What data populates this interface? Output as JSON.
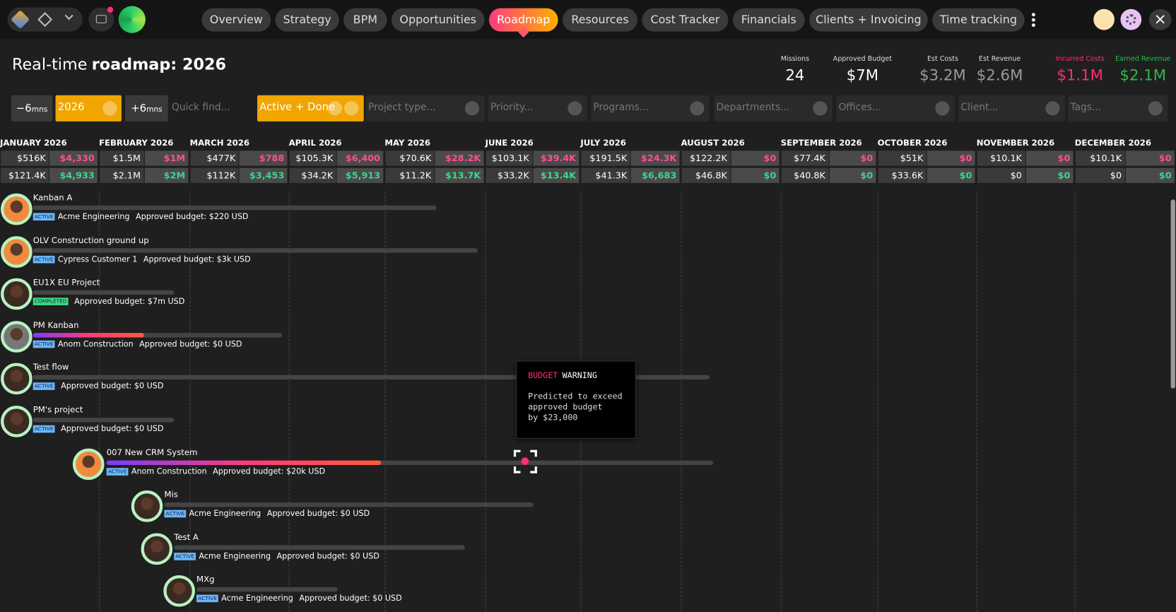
{
  "nav": {
    "items": [
      "Overview",
      "Strategy",
      "BPM",
      "Opportunities",
      "Roadmap",
      "Resources",
      "Cost Tracker",
      "Financials",
      "Clients + Invoicing",
      "Time tracking"
    ],
    "active": 4
  },
  "header": {
    "title_prefix": "Real-time",
    "title_main": "roadmap: 2026"
  },
  "stats": [
    {
      "label": "Missions",
      "value": "24",
      "color": "#ffffff"
    },
    {
      "label": "Approved Budget",
      "value": "$7M",
      "color": "#ffffff"
    },
    {
      "label": "Est Costs",
      "value": "$3.2M",
      "color": "#9a9a9a"
    },
    {
      "label": "Est Revenue",
      "value": "$2.6M",
      "color": "#9a9a9a"
    },
    {
      "label": "Incurred Costs",
      "value": "$1.1M",
      "color": "#ff2d7a"
    },
    {
      "label": "Earned Revenue",
      "value": "$2.1M",
      "color": "#2db84d"
    }
  ],
  "filters": {
    "prev": {
      "main": "−6",
      "unit": "mns"
    },
    "year": "2026",
    "next": {
      "main": "+6",
      "unit": "mns"
    },
    "search": "Quick find...",
    "status": "Active + Done",
    "dropdowns": [
      "Project type...",
      "Priority...",
      "Programs...",
      "Departments...",
      "Offices...",
      "Client...",
      "Tags..."
    ]
  },
  "months": [
    {
      "name": "JANUARY 2026",
      "est_cost": "$516K",
      "incurred": "$4,330",
      "est_revenue": "$121.4K",
      "earned": "$4,933"
    },
    {
      "name": "FEBRUARY 2026",
      "est_cost": "$1.5M",
      "incurred": "$1M",
      "est_revenue": "$2.1M",
      "earned": "$2M"
    },
    {
      "name": "MARCH 2026",
      "est_cost": "$477K",
      "incurred": "$788",
      "est_revenue": "$112K",
      "earned": "$3,453"
    },
    {
      "name": "APRIL 2026",
      "est_cost": "$105.3K",
      "incurred": "$6,400",
      "est_revenue": "$34.2K",
      "earned": "$5,913"
    },
    {
      "name": "MAY 2026",
      "est_cost": "$70.6K",
      "incurred": "$28.2K",
      "est_revenue": "$11.2K",
      "earned": "$13.7K"
    },
    {
      "name": "JUNE 2026",
      "est_cost": "$103.1K",
      "incurred": "$39.4K",
      "est_revenue": "$33.2K",
      "earned": "$13.4K"
    },
    {
      "name": "JULY 2026",
      "est_cost": "$191.5K",
      "incurred": "$24.3K",
      "est_revenue": "$41.3K",
      "earned": "$6,683"
    },
    {
      "name": "AUGUST 2026",
      "est_cost": "$122.2K",
      "incurred": "$0",
      "est_revenue": "$46.8K",
      "earned": "$0"
    },
    {
      "name": "SEPTEMBER 2026",
      "est_cost": "$77.4K",
      "incurred": "$0",
      "est_revenue": "$40.8K",
      "earned": "$0"
    },
    {
      "name": "OCTOBER 2026",
      "est_cost": "$51K",
      "incurred": "$0",
      "est_revenue": "$33.6K",
      "earned": "$0"
    },
    {
      "name": "NOVEMBER 2026",
      "est_cost": "$10.1K",
      "incurred": "$0",
      "est_revenue": "$0",
      "earned": "$0"
    },
    {
      "name": "DECEMBER 2026",
      "est_cost": "$10.1K",
      "incurred": "$0",
      "est_revenue": "$0",
      "earned": "$0"
    }
  ],
  "projects": [
    {
      "name": "Kanban A",
      "status": "ACTIVE",
      "client": "Acme Engineering",
      "budget": "Approved budget: $220 USD"
    },
    {
      "name": "OLV Construction ground up",
      "status": "ACTIVE",
      "client": "Cypress Customer 1",
      "budget": "Approved budget: $3k USD"
    },
    {
      "name": "EU1X EU Project",
      "status": "COMPLETED",
      "budget": "Approved budget: $7m USD"
    },
    {
      "name": "PM Kanban",
      "status": "ACTIVE",
      "client": "Anom Construction",
      "budget": "Approved budget: $0 USD"
    },
    {
      "name": "Test flow",
      "status": "ACTIVE",
      "budget": "Approved budget: $0 USD"
    },
    {
      "name": "PM's project",
      "status": "ACTIVE",
      "budget": "Approved budget: $0 USD"
    },
    {
      "name": "007 New CRM System",
      "status": "ACTIVE",
      "client": "Anom Construction",
      "budget": "Approved budget: $20k USD"
    },
    {
      "name": "Mis",
      "status": "ACTIVE",
      "client": "Acme Engineering",
      "budget": "Approved budget: $0 USD"
    },
    {
      "name": "Test A",
      "status": "ACTIVE",
      "client": "Acme Engineering",
      "budget": "Approved budget: $0 USD"
    },
    {
      "name": "MXg",
      "status": "ACTIVE",
      "client": "Acme Engineering",
      "budget": "Approved budget: $0 USD"
    }
  ],
  "tooltip": {
    "title_a": "BUDGET",
    "title_b": "WARNING",
    "lines": [
      "Predicted to exceed",
      "approved budget",
      "by $23,000"
    ]
  }
}
